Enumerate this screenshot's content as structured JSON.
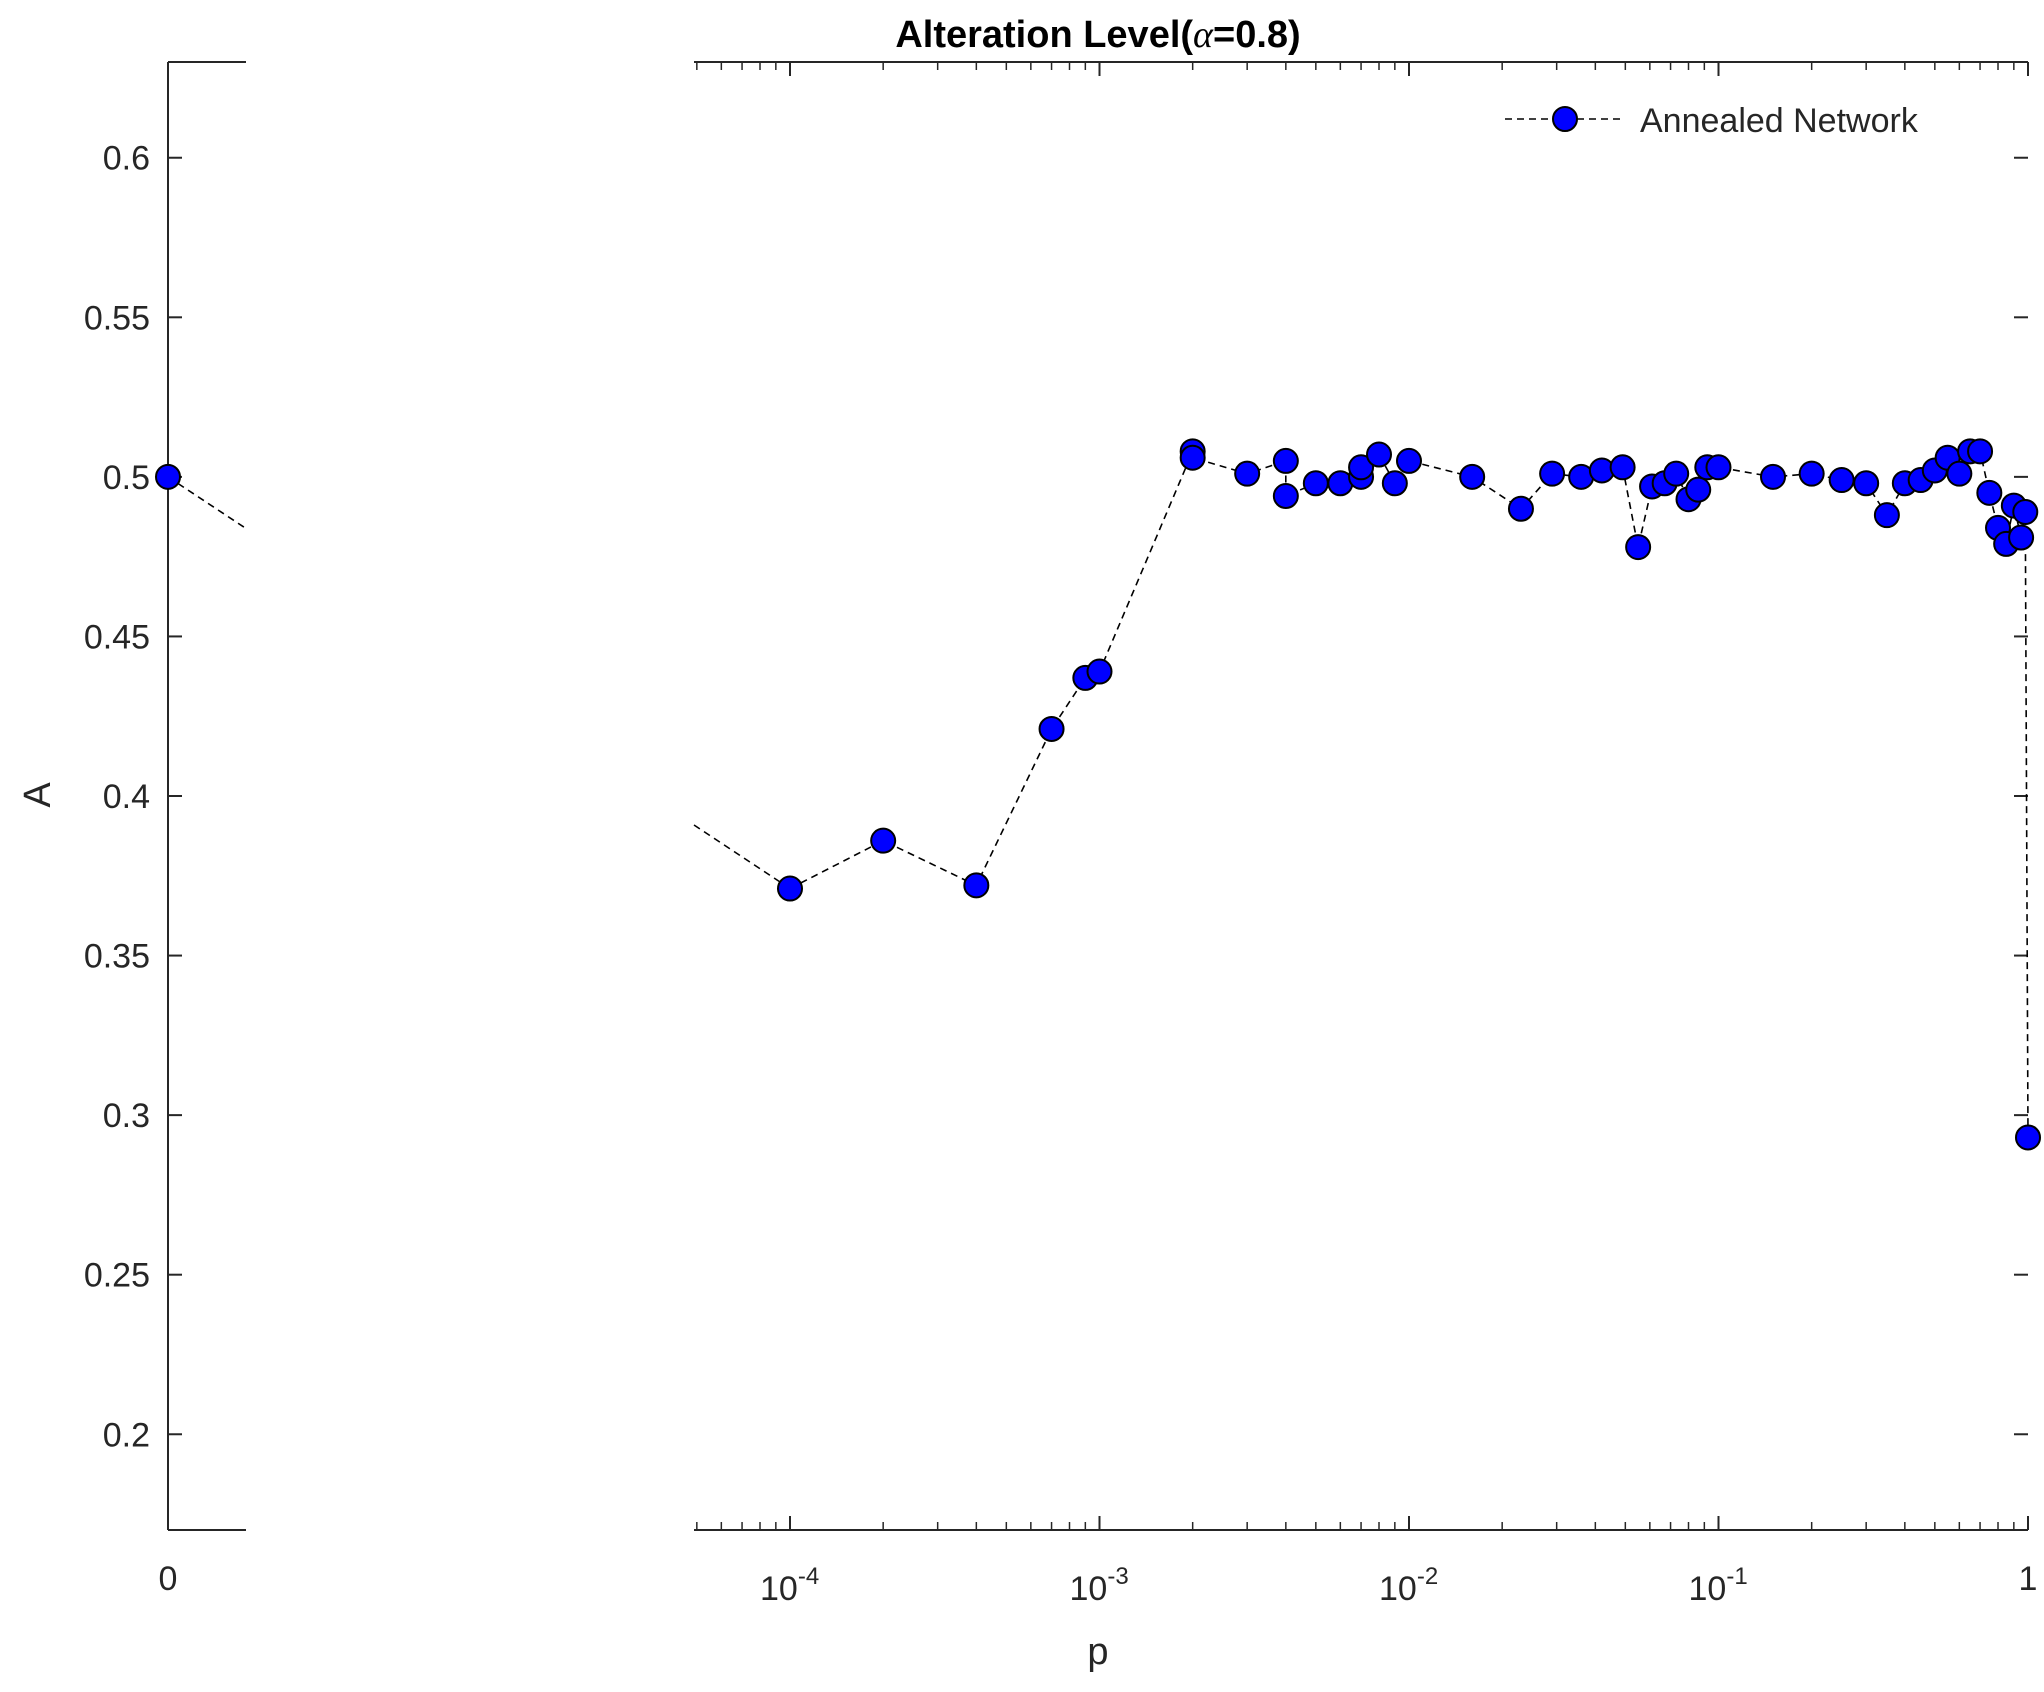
{
  "chart_data": {
    "type": "scatter",
    "title_prefix": "Alteration Level(",
    "title_symbol": "α",
    "title_suffix": "=0.8)",
    "xlabel": "p",
    "ylabel": "A",
    "x_scale": "log with a broken axis; left panel shows p = 0",
    "ylim": [
      0.17,
      0.63
    ],
    "xlim_log": [
      5e-05,
      1
    ],
    "grid": false,
    "legend": "top-right",
    "y_ticks": [
      "0.2",
      "0.25",
      "0.3",
      "0.35",
      "0.4",
      "0.45",
      "0.5",
      "0.55",
      "0.6"
    ],
    "y_tick_values": [
      0.2,
      0.25,
      0.3,
      0.35,
      0.4,
      0.45,
      0.5,
      0.55,
      0.6
    ],
    "x_ticks_left": [
      "0"
    ],
    "x_ticks_log": [
      {
        "base": "10",
        "exp": "-4",
        "value": 0.0001
      },
      {
        "base": "10",
        "exp": "-3",
        "value": 0.001
      },
      {
        "base": "10",
        "exp": "-2",
        "value": 0.01
      },
      {
        "base": "10",
        "exp": "-1",
        "value": 0.1
      },
      {
        "base": "1",
        "exp": "",
        "value": 1
      }
    ],
    "marker_color": "#0000ff",
    "series": [
      {
        "name": "Annealed Network",
        "points": [
          [
            0,
            0.5
          ],
          [
            0.0001,
            0.371
          ],
          [
            0.0002,
            0.386
          ],
          [
            0.0004,
            0.372
          ],
          [
            0.0007,
            0.421
          ],
          [
            0.0009,
            0.437
          ],
          [
            0.001,
            0.439
          ],
          [
            0.002,
            0.508
          ],
          [
            0.002,
            0.506
          ],
          [
            0.003,
            0.501
          ],
          [
            0.004,
            0.505
          ],
          [
            0.004,
            0.494
          ],
          [
            0.005,
            0.498
          ],
          [
            0.006,
            0.498
          ],
          [
            0.007,
            0.5
          ],
          [
            0.007,
            0.503
          ],
          [
            0.008,
            0.507
          ],
          [
            0.009,
            0.498
          ],
          [
            0.01,
            0.505
          ],
          [
            0.016,
            0.5
          ],
          [
            0.023,
            0.49
          ],
          [
            0.029,
            0.501
          ],
          [
            0.036,
            0.5
          ],
          [
            0.042,
            0.502
          ],
          [
            0.049,
            0.503
          ],
          [
            0.055,
            0.478
          ],
          [
            0.061,
            0.497
          ],
          [
            0.067,
            0.498
          ],
          [
            0.073,
            0.501
          ],
          [
            0.08,
            0.493
          ],
          [
            0.086,
            0.496
          ],
          [
            0.092,
            0.503
          ],
          [
            0.1,
            0.503
          ],
          [
            0.15,
            0.5
          ],
          [
            0.2,
            0.501
          ],
          [
            0.25,
            0.499
          ],
          [
            0.3,
            0.498
          ],
          [
            0.35,
            0.488
          ],
          [
            0.4,
            0.498
          ],
          [
            0.45,
            0.499
          ],
          [
            0.5,
            0.502
          ],
          [
            0.55,
            0.506
          ],
          [
            0.6,
            0.501
          ],
          [
            0.65,
            0.508
          ],
          [
            0.7,
            0.508
          ],
          [
            0.75,
            0.495
          ],
          [
            0.8,
            0.484
          ],
          [
            0.85,
            0.479
          ],
          [
            0.9,
            0.491
          ],
          [
            0.95,
            0.481
          ],
          [
            0.98,
            0.489
          ],
          [
            1.0,
            0.293
          ]
        ]
      }
    ]
  }
}
